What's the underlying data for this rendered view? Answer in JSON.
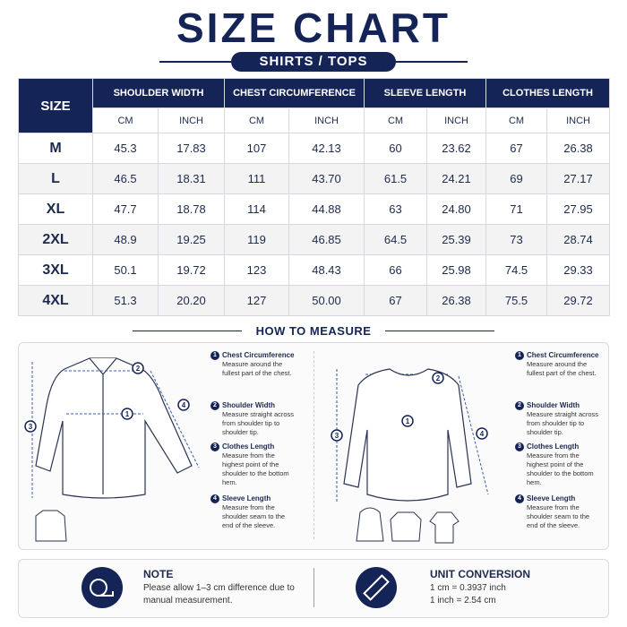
{
  "header": {
    "title": "SIZE CHART",
    "subtitle": "SHIRTS / TOPS"
  },
  "table": {
    "size_header": "SIZE",
    "groups": [
      {
        "name": "SHOULDER WIDTH",
        "units": [
          "CM",
          "INCH"
        ]
      },
      {
        "name": "CHEST CIRCUMFERENCE",
        "units": [
          "CM",
          "INCH"
        ]
      },
      {
        "name": "SLEEVE LENGTH",
        "units": [
          "CM",
          "INCH"
        ]
      },
      {
        "name": "CLOTHES LENGTH",
        "units": [
          "CM",
          "INCH"
        ]
      }
    ],
    "rows": [
      [
        "M",
        "45.3",
        "17.83",
        "107",
        "42.13",
        "60",
        "23.62",
        "67",
        "26.38"
      ],
      [
        "L",
        "46.5",
        "18.31",
        "111",
        "43.70",
        "61.5",
        "24.21",
        "69",
        "27.17"
      ],
      [
        "XL",
        "47.7",
        "18.78",
        "114",
        "44.88",
        "63",
        "24.80",
        "71",
        "27.95"
      ],
      [
        "2XL",
        "48.9",
        "19.25",
        "119",
        "46.85",
        "64.5",
        "25.39",
        "73",
        "28.74"
      ],
      [
        "3XL",
        "50.1",
        "19.72",
        "123",
        "48.43",
        "66",
        "25.98",
        "74.5",
        "29.33"
      ],
      [
        "4XL",
        "51.3",
        "20.20",
        "127",
        "50.00",
        "67",
        "26.38",
        "75.5",
        "29.72"
      ]
    ]
  },
  "how_to_measure": {
    "title": "HOW TO MEASURE",
    "panels": [
      {
        "steps": [
          {
            "number": "1",
            "title": "Chest Circumference",
            "text": "Measure around the fullest part of the chest."
          },
          {
            "number": "2",
            "title": "Shoulder Width",
            "text": "Measure straight across from shoulder tip to shoulder tip."
          },
          {
            "number": "3",
            "title": "Clothes Length",
            "text": "Measure from the highest point of the shoulder to the bottom hem."
          },
          {
            "number": "4",
            "title": "Sleeve Length",
            "text": "Measure from the shoulder seam to the end of the sleeve."
          }
        ]
      },
      {
        "steps": [
          {
            "number": "1",
            "title": "Chest Circumference",
            "text": "Measure around the fullest part of the chest."
          },
          {
            "number": "2",
            "title": "Shoulder Width",
            "text": "Measure straight across from shoulder tip to shoulder tip."
          },
          {
            "number": "3",
            "title": "Clothes Length",
            "text": "Measure from the highest point of the shoulder to the bottom hem."
          },
          {
            "number": "4",
            "title": "Sleeve Length",
            "text": "Measure from the shoulder seam to the end of the sleeve."
          }
        ]
      }
    ]
  },
  "note": {
    "title": "NOTE",
    "text": "Please allow 1–3 cm difference due to manual measurement."
  },
  "unit_conversion": {
    "title": "UNIT CONVERSION",
    "lines": [
      "1 cm = 0.3937 inch",
      "1 inch = 2.54 cm"
    ]
  }
}
